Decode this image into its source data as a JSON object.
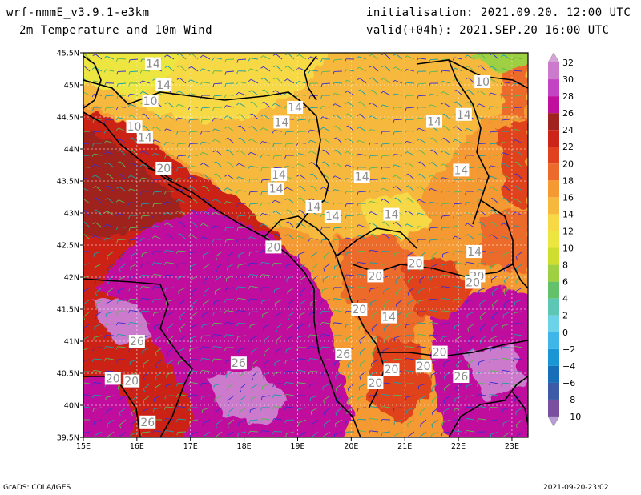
{
  "header": {
    "model": "wrf-nmmE_v3.9.1-e3km",
    "field": "2m Temperature and 10m Wind",
    "init": "initialisation: 2021.09.20. 12:00 UTC",
    "valid": "valid(+04h): 2021.SEP.20 16:00 UTC"
  },
  "footer": {
    "left": "GrADS: COLA/IGES",
    "right": "2021-09-20-23:02"
  },
  "map": {
    "lon_ticks": [
      "15E",
      "16E",
      "17E",
      "18E",
      "19E",
      "20E",
      "21E",
      "22E",
      "23E"
    ],
    "lat_ticks": [
      "45.5N",
      "45N",
      "44.5N",
      "44N",
      "43.5N",
      "43N",
      "42.5N",
      "42N",
      "41.5N",
      "41N",
      "40.5N",
      "40N",
      "39.5N"
    ],
    "lon_range": [
      15,
      23.3
    ],
    "lat_range": [
      39.5,
      45.5
    ],
    "contour_labels": [
      {
        "t": "14",
        "lon": 16.3,
        "lat": 45.33
      },
      {
        "t": "14",
        "lon": 16.5,
        "lat": 45.0
      },
      {
        "t": "10",
        "lon": 16.25,
        "lat": 44.75
      },
      {
        "t": "10",
        "lon": 15.95,
        "lat": 44.35
      },
      {
        "t": "14",
        "lon": 16.15,
        "lat": 44.18
      },
      {
        "t": "20",
        "lon": 16.5,
        "lat": 43.7
      },
      {
        "t": "14",
        "lon": 18.95,
        "lat": 44.65
      },
      {
        "t": "14",
        "lon": 18.7,
        "lat": 44.42
      },
      {
        "t": "14",
        "lon": 18.65,
        "lat": 43.6
      },
      {
        "t": "14",
        "lon": 18.6,
        "lat": 43.38
      },
      {
        "t": "14",
        "lon": 20.2,
        "lat": 43.57
      },
      {
        "t": "14",
        "lon": 19.3,
        "lat": 43.1
      },
      {
        "t": "14",
        "lon": 19.65,
        "lat": 42.95
      },
      {
        "t": "14",
        "lon": 20.75,
        "lat": 42.98
      },
      {
        "t": "10",
        "lon": 22.45,
        "lat": 45.05
      },
      {
        "t": "14",
        "lon": 22.1,
        "lat": 44.54
      },
      {
        "t": "14",
        "lon": 21.55,
        "lat": 44.43
      },
      {
        "t": "14",
        "lon": 22.05,
        "lat": 43.67
      },
      {
        "t": "20",
        "lon": 18.55,
        "lat": 42.47
      },
      {
        "t": "20",
        "lon": 21.2,
        "lat": 42.22
      },
      {
        "t": "14",
        "lon": 22.3,
        "lat": 42.4
      },
      {
        "t": "20",
        "lon": 22.35,
        "lat": 42.02
      },
      {
        "t": "20",
        "lon": 22.27,
        "lat": 41.92
      },
      {
        "t": "20",
        "lon": 20.45,
        "lat": 42.02
      },
      {
        "t": "20",
        "lon": 20.15,
        "lat": 41.5
      },
      {
        "t": "14",
        "lon": 20.7,
        "lat": 41.38
      },
      {
        "t": "26",
        "lon": 16.0,
        "lat": 41.0
      },
      {
        "t": "26",
        "lon": 17.9,
        "lat": 40.66
      },
      {
        "t": "26",
        "lon": 19.85,
        "lat": 40.8
      },
      {
        "t": "20",
        "lon": 21.65,
        "lat": 40.83
      },
      {
        "t": "20",
        "lon": 20.75,
        "lat": 40.56
      },
      {
        "t": "20",
        "lon": 21.35,
        "lat": 40.61
      },
      {
        "t": "20",
        "lon": 20.45,
        "lat": 40.35
      },
      {
        "t": "26",
        "lon": 22.05,
        "lat": 40.45
      },
      {
        "t": "20",
        "lon": 15.55,
        "lat": 40.42
      },
      {
        "t": "20",
        "lon": 15.9,
        "lat": 40.38
      },
      {
        "t": "26",
        "lon": 16.2,
        "lat": 39.74
      }
    ]
  },
  "legend": {
    "labels": [
      "32",
      "30",
      "28",
      "26",
      "24",
      "22",
      "20",
      "18",
      "16",
      "14",
      "12",
      "10",
      "8",
      "6",
      "4",
      "2",
      "0",
      "−2",
      "−4",
      "−6",
      "−8",
      "−10"
    ],
    "colors": {
      "32": "#d9a3d9",
      "30": "#cc7acc",
      "28": "#c244c2",
      "26": "#c00f9d",
      "24": "#a0231f",
      "22": "#cc2418",
      "20": "#e0421f",
      "18": "#ec6a2c",
      "16": "#f59a32",
      "14": "#f7b93d",
      "12": "#f7d845",
      "10": "#ede540",
      "8": "#cfde2e",
      "6": "#9fcf42",
      "4": "#63c06b",
      "2": "#5dc6b5",
      "0": "#6bd2e8",
      "-2": "#3fb5e8",
      "-4": "#1a96d4",
      "-6": "#166fb8",
      "-8": "#3c5aa5",
      "-10": "#7a4fa0"
    }
  }
}
